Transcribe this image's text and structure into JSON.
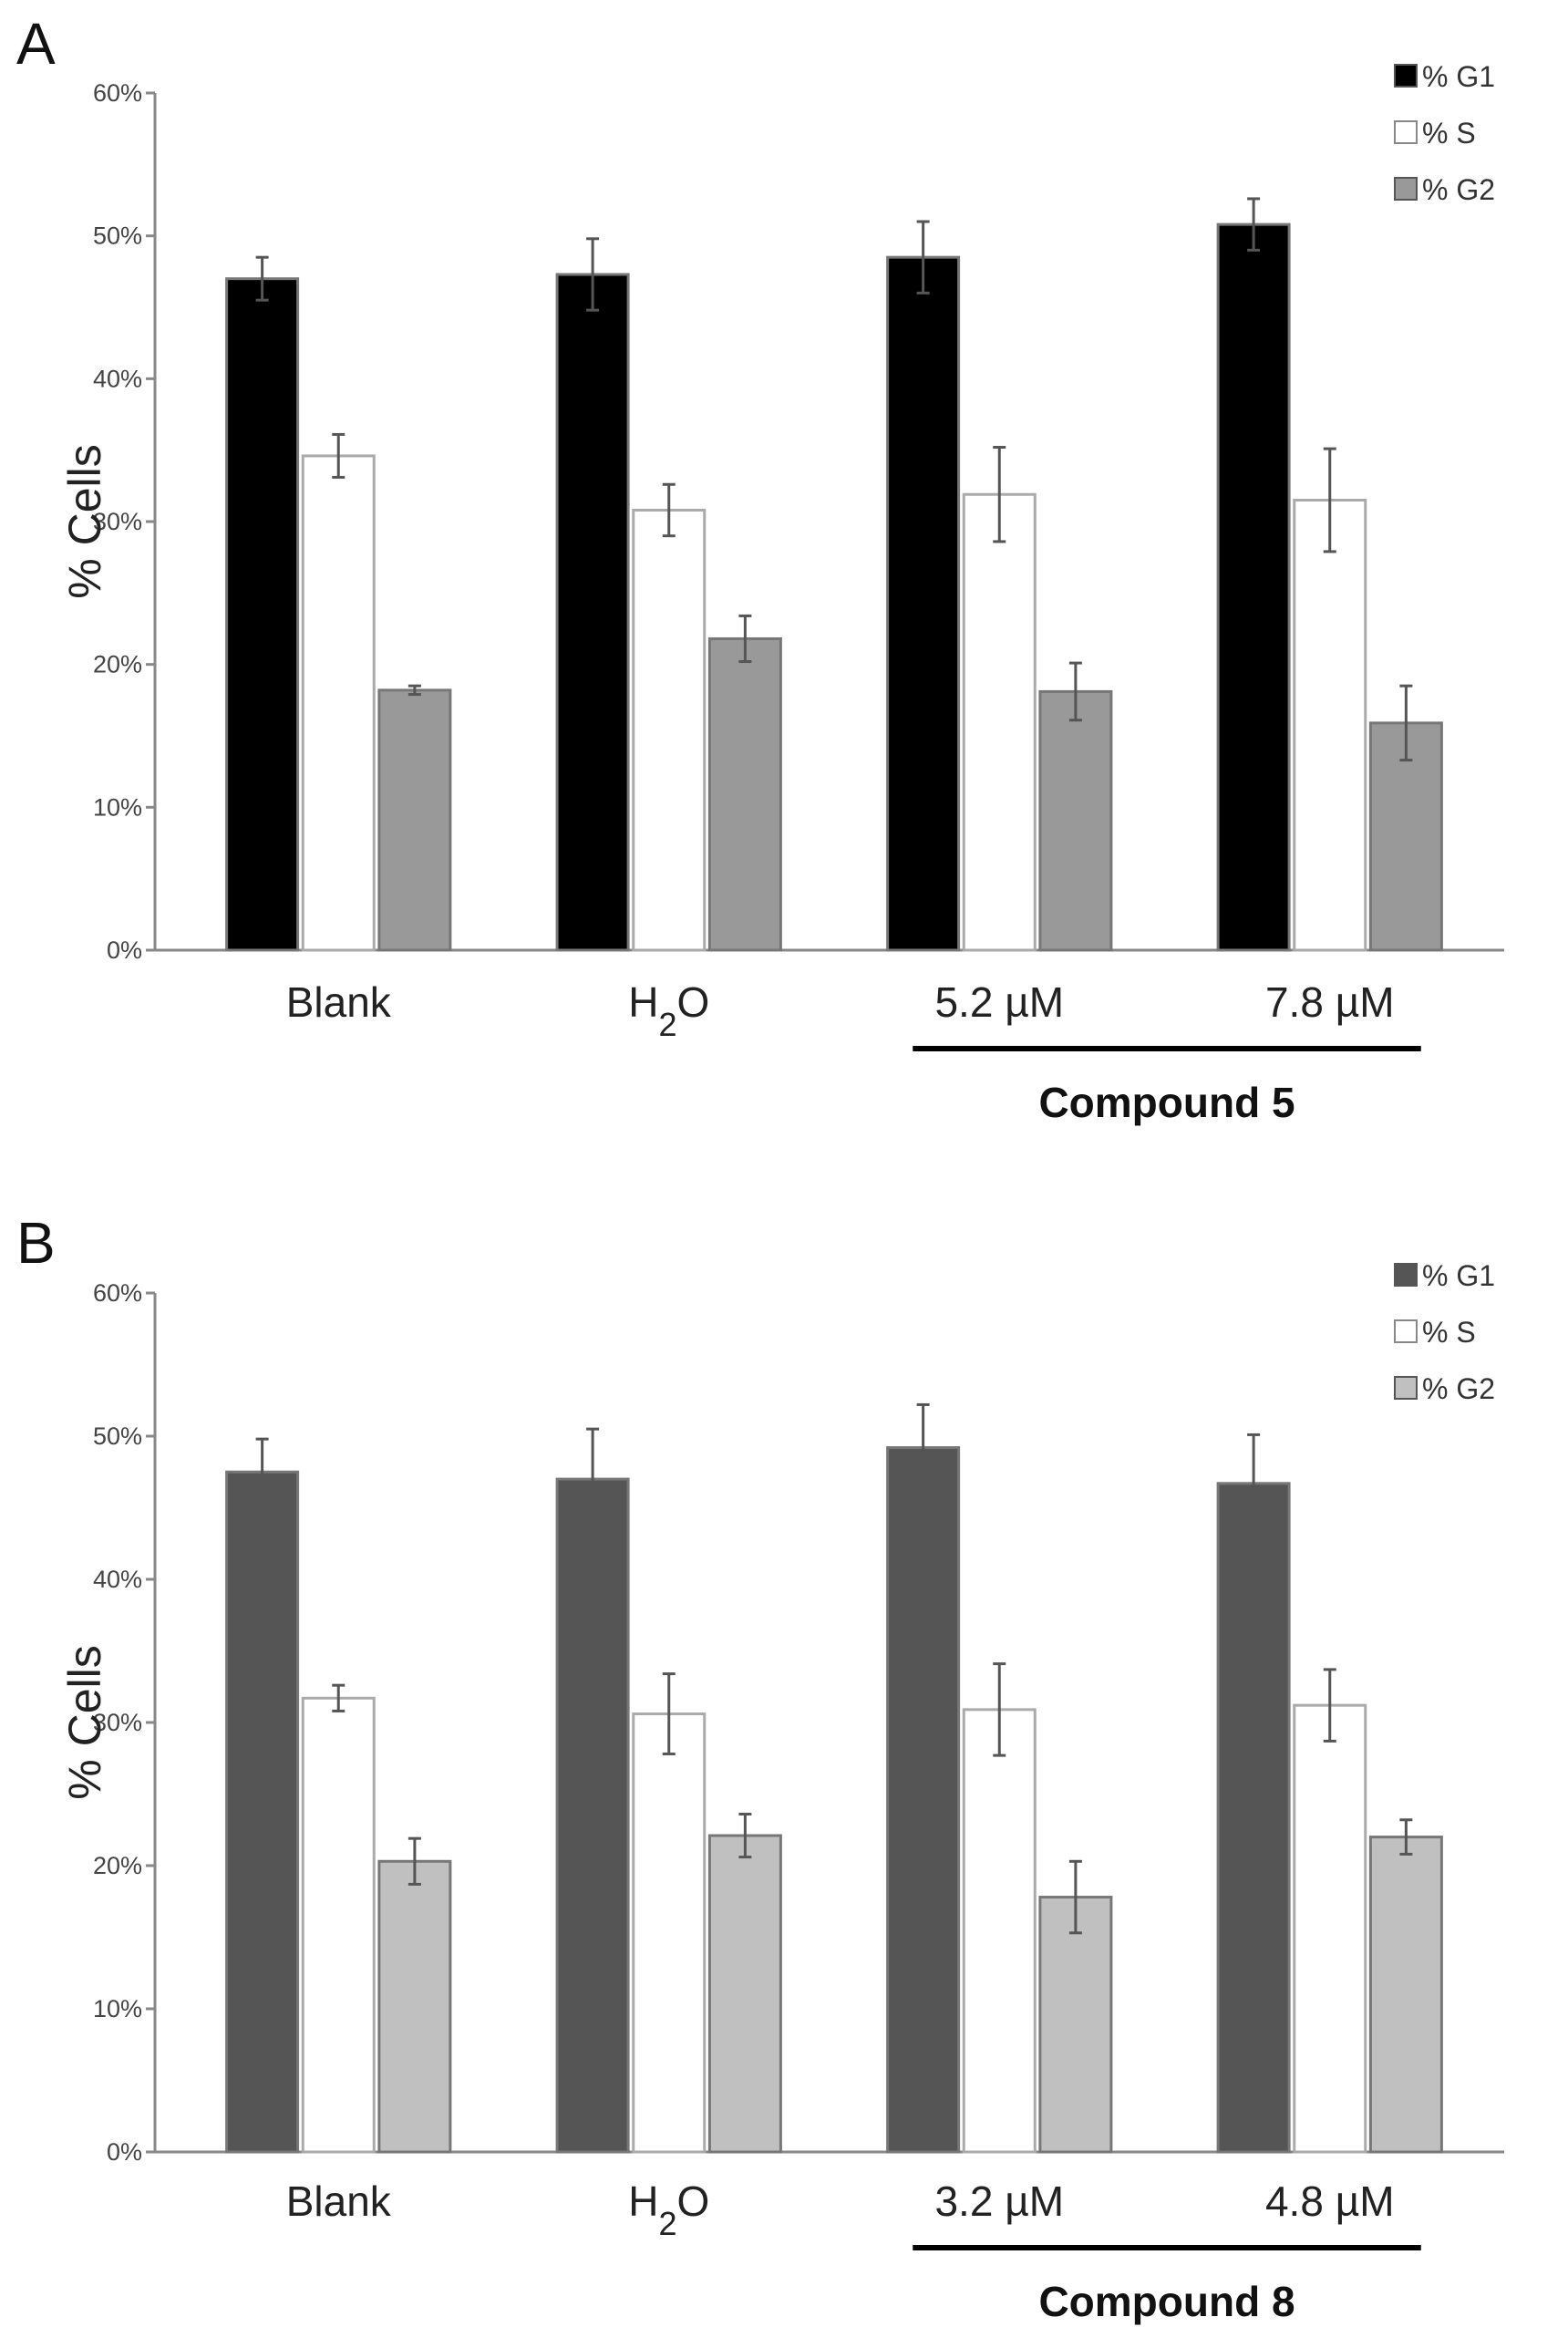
{
  "chart_data": [
    {
      "type": "bar",
      "panel_label": "A",
      "categories": [
        "Blank",
        "H2O",
        "5.2 µM",
        "7.8 µM"
      ],
      "ylabel": "% Cells",
      "ylim": [
        0,
        60
      ],
      "yticks": [
        "0%",
        "10%",
        "20%",
        "30%",
        "40%",
        "50%",
        "60%"
      ],
      "group_label": "Compound 5",
      "group_span": [
        "5.2 µM",
        "7.8 µM"
      ],
      "legend_position": "top-right",
      "series": [
        {
          "name": "% G1",
          "color": "#000000",
          "values": [
            47,
            47.3,
            48.5,
            50.8
          ],
          "errors": [
            1.5,
            2.5,
            2.5,
            1.8
          ]
        },
        {
          "name": "% S",
          "color": "#ffffff",
          "values": [
            34.6,
            30.8,
            31.9,
            31.5
          ],
          "errors": [
            1.5,
            1.8,
            3.3,
            3.6
          ]
        },
        {
          "name": "% G2",
          "color": "#999999",
          "values": [
            18.2,
            21.8,
            18.1,
            15.9
          ],
          "errors": [
            0.3,
            1.6,
            2.0,
            2.6
          ]
        }
      ]
    },
    {
      "type": "bar",
      "panel_label": "B",
      "categories": [
        "Blank",
        "H2O",
        "3.2 µM",
        "4.8 µM"
      ],
      "ylabel": "% Cells",
      "ylim": [
        0,
        60
      ],
      "yticks": [
        "0%",
        "10%",
        "20%",
        "30%",
        "40%",
        "50%",
        "60%"
      ],
      "group_label": "Compound 8",
      "group_span": [
        "3.2 µM",
        "4.8 µM"
      ],
      "legend_position": "top-right",
      "series": [
        {
          "name": "% G1",
          "color": "#555555",
          "values": [
            47.5,
            47,
            49.2,
            46.7
          ],
          "errors": [
            2.3,
            3.5,
            3.0,
            3.4
          ]
        },
        {
          "name": "% S",
          "color": "#ffffff",
          "values": [
            31.7,
            30.6,
            30.9,
            31.2
          ],
          "errors": [
            0.9,
            2.8,
            3.2,
            2.5
          ]
        },
        {
          "name": "% G2",
          "color": "#c0c0c0",
          "values": [
            20.3,
            22.1,
            17.8,
            22
          ],
          "errors": [
            1.6,
            1.5,
            2.5,
            1.2
          ]
        }
      ]
    }
  ]
}
